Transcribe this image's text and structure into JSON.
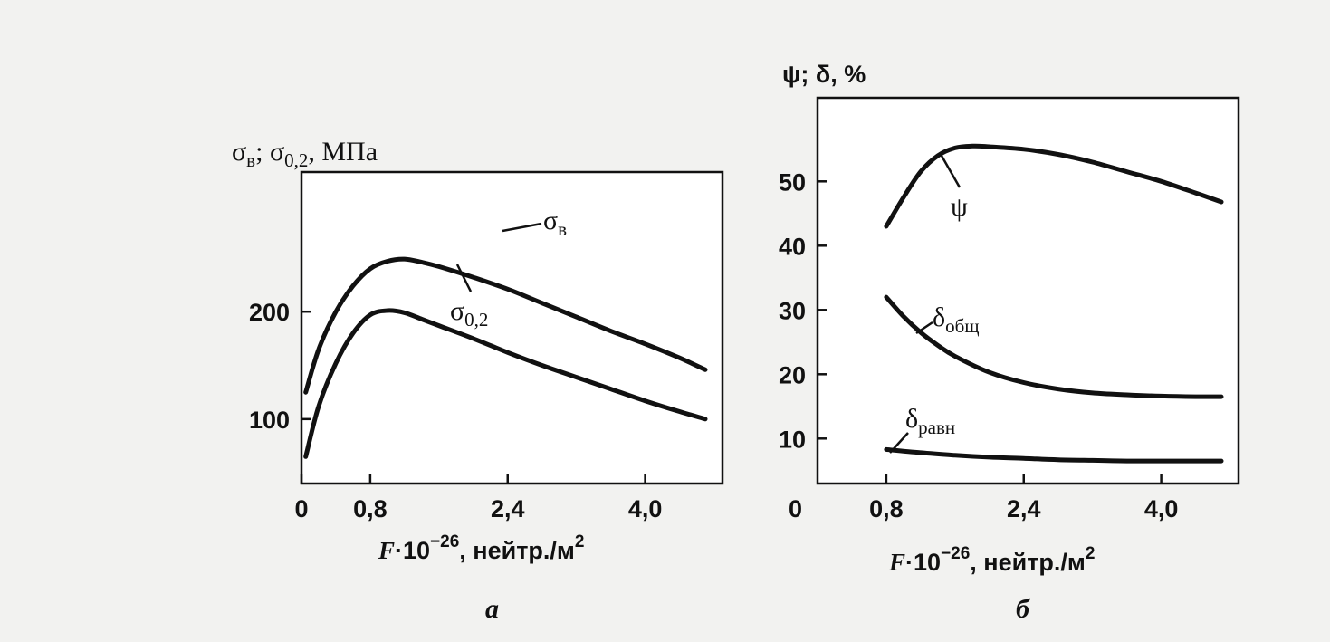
{
  "chart_data": [
    {
      "type": "line",
      "caption": "а",
      "ylabel_main": "σ",
      "ylabel_sub1": "в",
      "ylabel_sep": "; ",
      "ylabel_main2": "σ",
      "ylabel_sub2": "0,2",
      "ylabel_unit": ",  МПа",
      "xlabel_F": "F",
      "xlabel_mid": "·10",
      "xlabel_exp": "−26",
      "xlabel_unit": ", нейтр./м",
      "xlabel_unit_exp": "2",
      "xlim": [
        0,
        4.9
      ],
      "ylim": [
        40,
        330
      ],
      "xticks": [
        0,
        0.8,
        2.4,
        4.0
      ],
      "xtick_labels": [
        "0",
        "0,8",
        "2,4",
        "4,0"
      ],
      "yticks": [
        100,
        200
      ],
      "ytick_labels": [
        "100",
        "200"
      ],
      "series": [
        {
          "label_main": "σ",
          "label_sub": "в",
          "x": [
            0.05,
            0.2,
            0.4,
            0.6,
            0.8,
            1.0,
            1.2,
            1.4,
            1.6,
            2.0,
            2.4,
            2.8,
            3.2,
            3.6,
            4.0,
            4.4,
            4.7
          ],
          "y": [
            125,
            165,
            200,
            224,
            240,
            247,
            249,
            246,
            242,
            232,
            221,
            208,
            195,
            182,
            170,
            157,
            146
          ]
        },
        {
          "label_main": "σ",
          "label_sub": "0,2",
          "x": [
            0.05,
            0.2,
            0.4,
            0.6,
            0.8,
            1.0,
            1.2,
            1.4,
            1.6,
            2.0,
            2.4,
            2.8,
            3.2,
            3.6,
            4.0,
            4.4,
            4.7
          ],
          "y": [
            65,
            112,
            152,
            180,
            197,
            201,
            199,
            193,
            187,
            175,
            162,
            150,
            139,
            128,
            117,
            107,
            100
          ]
        }
      ]
    },
    {
      "type": "line",
      "caption": "б",
      "ylabel_main": "ψ; δ,  %",
      "xlabel_F": "F",
      "xlabel_mid": "·10",
      "xlabel_exp": "−26",
      "xlabel_unit": ", нейтр./м",
      "xlabel_unit_exp": "2",
      "xlim": [
        0,
        4.9
      ],
      "ylim": [
        3,
        63
      ],
      "xticks": [
        0.8,
        2.4,
        4.0
      ],
      "xtick_labels": [
        "0,8",
        "2,4",
        "4,0"
      ],
      "origin_label": "0",
      "yticks": [
        10,
        20,
        30,
        40,
        50
      ],
      "ytick_labels": [
        "10",
        "20",
        "30",
        "40",
        "50"
      ],
      "series": [
        {
          "label_main": "ψ",
          "label_sub": "",
          "x": [
            0.8,
            1.0,
            1.2,
            1.4,
            1.6,
            1.8,
            2.0,
            2.4,
            2.8,
            3.2,
            3.6,
            4.0,
            4.4,
            4.7
          ],
          "y": [
            43,
            47.5,
            51.5,
            54,
            55.2,
            55.5,
            55.4,
            55,
            54.2,
            53,
            51.5,
            50,
            48.2,
            46.8
          ]
        },
        {
          "label_main": "δ",
          "label_sub": "общ",
          "x": [
            0.8,
            1.0,
            1.2,
            1.4,
            1.6,
            2.0,
            2.4,
            2.8,
            3.2,
            3.6,
            4.0,
            4.4,
            4.7
          ],
          "y": [
            32,
            29,
            26.5,
            24.5,
            22.8,
            20.3,
            18.7,
            17.7,
            17.1,
            16.8,
            16.6,
            16.5,
            16.5
          ]
        },
        {
          "label_main": "δ",
          "label_sub": "равн",
          "x": [
            0.8,
            1.2,
            1.6,
            2.0,
            2.4,
            2.8,
            3.2,
            3.6,
            4.0,
            4.4,
            4.7
          ],
          "y": [
            8.3,
            7.8,
            7.4,
            7.1,
            6.9,
            6.7,
            6.6,
            6.5,
            6.5,
            6.5,
            6.5
          ]
        }
      ]
    }
  ]
}
